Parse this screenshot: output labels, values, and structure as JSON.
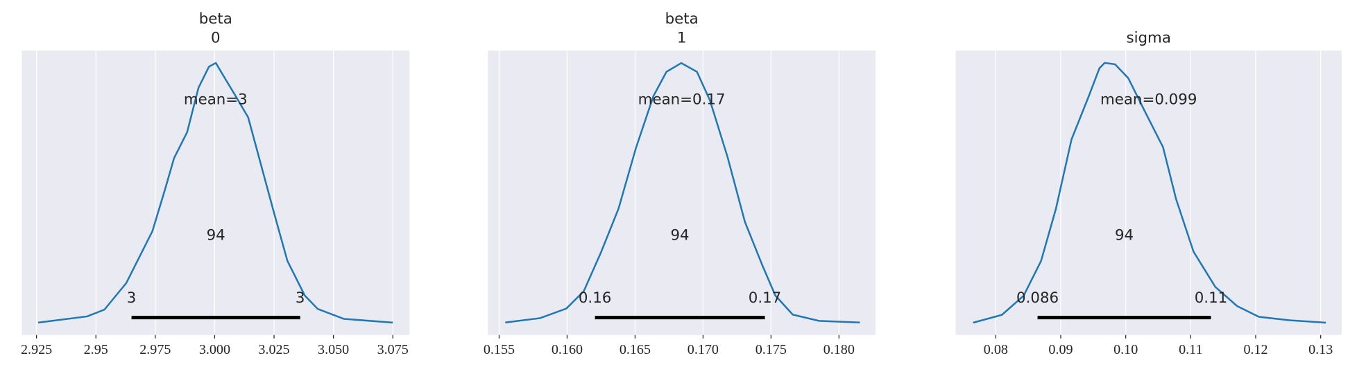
{
  "chart_data": [
    {
      "type": "density",
      "title": "beta",
      "subtitle": "0",
      "color": "#1f77b4",
      "grid": true,
      "mean_label": "mean=3",
      "hdi_prob": 94,
      "hdi": [
        2.965,
        3.036
      ],
      "hdi_labels": [
        "3",
        "3"
      ],
      "xlim": [
        2.9188,
        3.082
      ],
      "ylim": [
        -1,
        22
      ],
      "xticks": [
        2.925,
        2.95,
        2.975,
        {
          "value": 3.0,
          "label": "3.000"
        },
        3.025,
        {
          "value": 3.05,
          "label": "3.050"
        },
        3.075
      ],
      "x": [
        2.9257,
        2.9463,
        2.9536,
        2.9628,
        2.9738,
        2.9793,
        2.9829,
        2.9884,
        2.9932,
        2.9976,
        3.0005,
        3.0042,
        3.0086,
        3.0141,
        3.0196,
        3.0251,
        3.0306,
        3.0379,
        3.0434,
        3.0544,
        3.075
      ],
      "values": [
        0,
        0.5,
        1.05,
        3.2,
        7.4,
        10.9,
        13.3,
        15.4,
        19.0,
        20.7,
        21.0,
        19.8,
        18.4,
        16.6,
        12.7,
        8.8,
        5.0,
        2.2,
        1.1,
        0.3,
        0
      ]
    },
    {
      "type": "density",
      "title": "beta",
      "subtitle": "1",
      "color": "#1f77b4",
      "grid": true,
      "mean_label": "mean=0.17",
      "hdi_prob": 94,
      "hdi": [
        0.16205,
        0.17455
      ],
      "hdi_labels": [
        "0.16",
        "0.17"
      ],
      "xlim": [
        0.15417,
        0.18269
      ],
      "ylim": [
        -6,
        131
      ],
      "xticks": [
        0.155,
        {
          "value": 0.16,
          "label": "0.160"
        },
        0.165,
        {
          "value": 0.17,
          "label": "0.170"
        },
        0.175,
        {
          "value": 0.18,
          "label": "0.180"
        }
      ],
      "x": [
        0.15545,
        0.15801,
        0.15994,
        0.16122,
        0.1625,
        0.16378,
        0.16506,
        0.16635,
        0.16731,
        0.1684,
        0.16955,
        0.17051,
        0.1718,
        0.17308,
        0.17436,
        0.17532,
        0.1766,
        0.17853,
        0.18154
      ],
      "values": [
        0,
        2.1,
        6.7,
        15.0,
        33.9,
        54.8,
        84.0,
        109.1,
        120.8,
        125,
        120.8,
        107.0,
        79.8,
        48.5,
        27.6,
        13.0,
        3.8,
        0.8,
        0
      ]
    },
    {
      "type": "density",
      "title": "sigma",
      "color": "#1f77b4",
      "grid": true,
      "mean_label": "mean=0.099",
      "hdi_prob": 94,
      "hdi": [
        0.08643,
        0.11311
      ],
      "hdi_labels": [
        "0.086",
        "0.11"
      ],
      "xlim": [
        0.07383,
        0.13322
      ],
      "ylim": [
        -2.5,
        55.5
      ],
      "xticks": [
        0.08,
        0.09,
        {
          "value": 0.1,
          "label": "0.10"
        },
        0.11,
        0.12,
        0.13
      ],
      "x": [
        0.07651,
        0.08094,
        0.08429,
        0.08697,
        0.08925,
        0.09166,
        0.09434,
        0.09595,
        0.09676,
        0.09836,
        0.10038,
        0.10306,
        0.10574,
        0.10775,
        0.11043,
        0.11378,
        0.11713,
        0.12048,
        0.12517,
        0.1308
      ],
      "values": [
        0,
        1.6,
        5.5,
        12.6,
        23.2,
        37.4,
        46.3,
        51.9,
        53,
        52.7,
        49.9,
        42.8,
        35.8,
        25.2,
        14.5,
        7.3,
        3.4,
        1.2,
        0.5,
        0
      ]
    }
  ]
}
